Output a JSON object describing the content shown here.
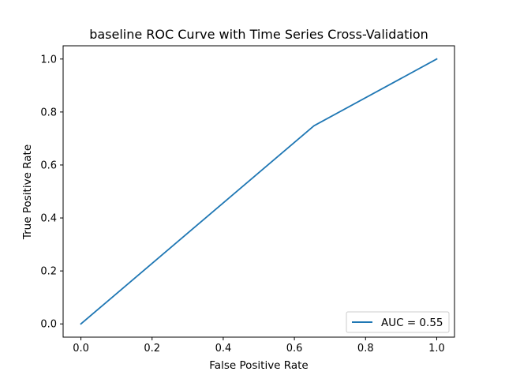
{
  "chart_data": {
    "type": "line",
    "title": "baseline ROC Curve with Time Series Cross-Validation",
    "xlabel": "False Positive Rate",
    "ylabel": "True Positive Rate",
    "xlim": [
      -0.05,
      1.05
    ],
    "ylim": [
      -0.05,
      1.05
    ],
    "xticks": [
      0.0,
      0.2,
      0.4,
      0.6,
      0.8,
      1.0
    ],
    "yticks": [
      0.0,
      0.2,
      0.4,
      0.6,
      0.8,
      1.0
    ],
    "xtick_labels": [
      "0.0",
      "0.2",
      "0.4",
      "0.6",
      "0.8",
      "1.0"
    ],
    "ytick_labels": [
      "0.0",
      "0.2",
      "0.4",
      "0.6",
      "0.8",
      "1.0"
    ],
    "grid": false,
    "legend": "lower-right",
    "series": [
      {
        "name": "AUC = 0.55",
        "color": "#1f77b4",
        "x": [
          0.0,
          0.655,
          1.0
        ],
        "y": [
          0.0,
          0.748,
          1.0
        ]
      }
    ]
  }
}
